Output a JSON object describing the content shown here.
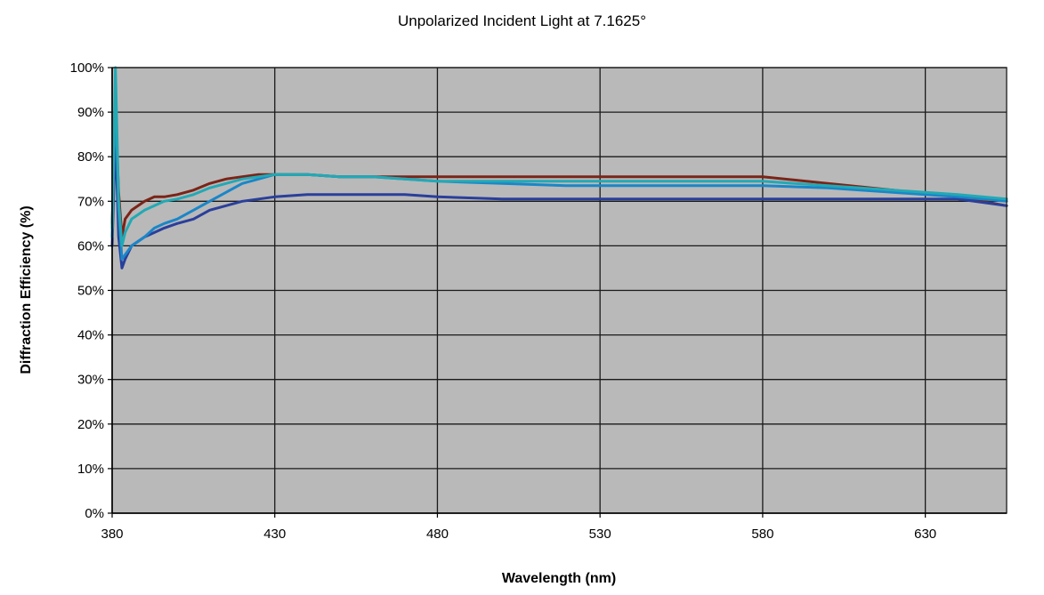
{
  "chart_data": {
    "type": "line",
    "title": "Unpolarized Incident Light at 7.1625°",
    "xlabel": "Wavelength (nm)",
    "ylabel": "Diffraction Efficiency (%)",
    "xlim": [
      380,
      655
    ],
    "ylim": [
      0,
      100
    ],
    "x_ticks": [
      380,
      430,
      480,
      530,
      580,
      630
    ],
    "y_ticks": [
      "0%",
      "10%",
      "20%",
      "30%",
      "40%",
      "50%",
      "60%",
      "70%",
      "80%",
      "90%",
      "100%"
    ],
    "grid": true,
    "legend": "none",
    "colors": {
      "background": "#b9b9b9",
      "grid": "#1a1a1a"
    },
    "series": [
      {
        "color": "#7a2418",
        "x": [
          380,
          381,
          382,
          383,
          384,
          386,
          388,
          390,
          393,
          396,
          400,
          405,
          410,
          415,
          420,
          425,
          430,
          440,
          450,
          460,
          470,
          480,
          500,
          520,
          540,
          560,
          580,
          600,
          620,
          640,
          655
        ],
        "y": [
          65,
          90,
          72,
          62,
          66,
          68,
          69,
          70,
          71,
          71,
          71.5,
          72.5,
          74,
          75,
          75.5,
          76,
          76,
          76,
          75.5,
          75.5,
          75.5,
          75.5,
          75.5,
          75.5,
          75.5,
          75.5,
          75.5,
          74,
          72.5,
          71,
          69
        ]
      },
      {
        "color": "#2a3f9b",
        "x": [
          380,
          381,
          382,
          383,
          384,
          386,
          388,
          390,
          393,
          396,
          400,
          405,
          410,
          415,
          420,
          425,
          430,
          440,
          450,
          460,
          470,
          480,
          500,
          520,
          540,
          560,
          580,
          600,
          620,
          640,
          655
        ],
        "y": [
          60,
          85,
          62,
          55,
          57,
          60,
          61,
          62,
          63,
          64,
          65,
          66,
          68,
          69,
          70,
          70.5,
          71,
          71.5,
          71.5,
          71.5,
          71.5,
          71,
          70.5,
          70.5,
          70.5,
          70.5,
          70.5,
          70.5,
          70.5,
          70.5,
          69
        ]
      },
      {
        "color": "#1a86c8",
        "x": [
          380,
          381,
          382,
          383,
          384,
          386,
          388,
          390,
          393,
          396,
          400,
          405,
          410,
          415,
          420,
          425,
          430,
          440,
          450,
          460,
          470,
          480,
          500,
          520,
          540,
          560,
          580,
          600,
          620,
          640,
          655
        ],
        "y": [
          62,
          95,
          68,
          57,
          58,
          60,
          61,
          62,
          64,
          65,
          66,
          68,
          70,
          72,
          74,
          75,
          76,
          76,
          75.5,
          75.5,
          75,
          74.5,
          74,
          73.5,
          73.5,
          73.5,
          73.5,
          73,
          72,
          71,
          70
        ]
      },
      {
        "color": "#23a9b4",
        "x": [
          380,
          381,
          382,
          383,
          384,
          386,
          388,
          390,
          393,
          396,
          400,
          405,
          410,
          415,
          420,
          425,
          430,
          440,
          450,
          460,
          470,
          480,
          500,
          520,
          540,
          560,
          580,
          600,
          620,
          640,
          655
        ],
        "y": [
          64,
          100,
          70,
          60,
          63,
          66,
          67,
          68,
          69,
          70,
          70.5,
          71.5,
          73,
          74,
          75,
          75.5,
          76,
          76,
          75.5,
          75.5,
          75,
          74.5,
          74.5,
          74.5,
          74.5,
          74.5,
          74.5,
          73.5,
          72.5,
          71.5,
          70.5
        ]
      }
    ]
  }
}
